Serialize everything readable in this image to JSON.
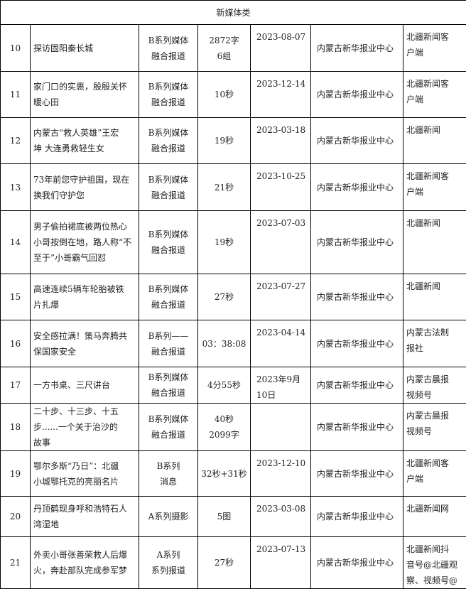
{
  "section_title": "新媒体类",
  "rows": [
    {
      "no": "10",
      "name": "探访固阳秦长城",
      "type": "B系列媒体\n融合报道",
      "length": "2872字\n6组",
      "date": "2023-08-07",
      "unit": "内蒙古新华报业中心",
      "platform": "北疆新闻客\n户端"
    },
    {
      "no": "11",
      "name": "家门口的实惠，殷殷关怀\n暖心田",
      "type": "B系列媒体\n融合报道",
      "length": "10秒",
      "date": "2023-12-14",
      "unit": "内蒙古新华报业中心",
      "platform": "北疆新闻客\n户端"
    },
    {
      "no": "12",
      "name": "内蒙古“救人英雄”王宏\n坤 大连勇救轻生女",
      "type": "B系列媒体\n融合报道",
      "length": "19秒",
      "date": "2023-03-18",
      "unit": "内蒙古新华报业中心",
      "platform": "北疆新闻"
    },
    {
      "no": "13",
      "name": "73年前您守护祖国，现在\n换我们守护您",
      "type": "B系列媒体\n融合报道",
      "length": "21秒",
      "date": "2023-10-25",
      "unit": "内蒙古新华报业中心",
      "platform": "北疆新闻客\n户端"
    },
    {
      "no": "14",
      "name": "男子偷拍裙底被两位热心\n小哥按倒在地，路人称“不\n至于”小哥霸气回怼",
      "type": "B系列媒体\n融合报道",
      "length": "19秒",
      "date": "2023-07-03",
      "unit": "内蒙古新华报业中心",
      "platform": "北疆新闻"
    },
    {
      "no": "15",
      "name": "高速连续5辆车轮胎被铁\n片扎爆",
      "type": "B系列媒体\n融合报道",
      "length": "27秒",
      "date": "2023-07-27",
      "unit": "内蒙古新华报业中心",
      "platform": "北疆新闻"
    },
    {
      "no": "16",
      "name": "安全感拉满！策马奔腾共\n保国家安全",
      "type": "B系列——\n融合报道",
      "length": "03：38:08",
      "date": "2023-04-14",
      "unit": "内蒙古新华报业中心",
      "platform": "内蒙古法制\n报社"
    },
    {
      "no": "17",
      "name": "一方书桌、三尺讲台",
      "type": "B系列媒体\n融合报道",
      "length": "4分55秒",
      "date": "2023年9月\n10日",
      "unit": "内蒙古新华报业中心",
      "platform": "内蒙古晨报\n视频号"
    },
    {
      "no": "18",
      "name": "二十步、十三步、十五\n步......一个关于治沙的\n故事",
      "type": "B系列媒体\n融合报道",
      "length": "40秒\n2099字",
      "date": "",
      "unit": "内蒙古新华报业中心",
      "platform": "内蒙古晨报\n视频号"
    },
    {
      "no": "19",
      "name": "鄂尔多斯“乃日”：北疆\n小城鄂托克的亮丽名片",
      "type": "B系列\n消息",
      "length": "32秒+31秒",
      "date": "2023-12-10",
      "unit": "内蒙古新华报业中心",
      "platform": "北疆新闻客\n户端"
    },
    {
      "no": "20",
      "name": "丹顶鹤现身呼和浩特石人\n湾湿地",
      "type": "A系列摄影",
      "length": "5图",
      "date": "2023-03-08",
      "unit": "内蒙古新华报业中心",
      "platform": "北疆新闻网"
    },
    {
      "no": "21",
      "name": "外卖小哥张善荣救人后爆\n火，奔赴部队完成参军梦",
      "type": "A系列\n系列报道",
      "length": "27秒",
      "date": "2023-07-13",
      "unit": "内蒙古新华报业中心",
      "platform": "北疆新闻抖\n音号@北疆观\n察、视频号@"
    }
  ]
}
